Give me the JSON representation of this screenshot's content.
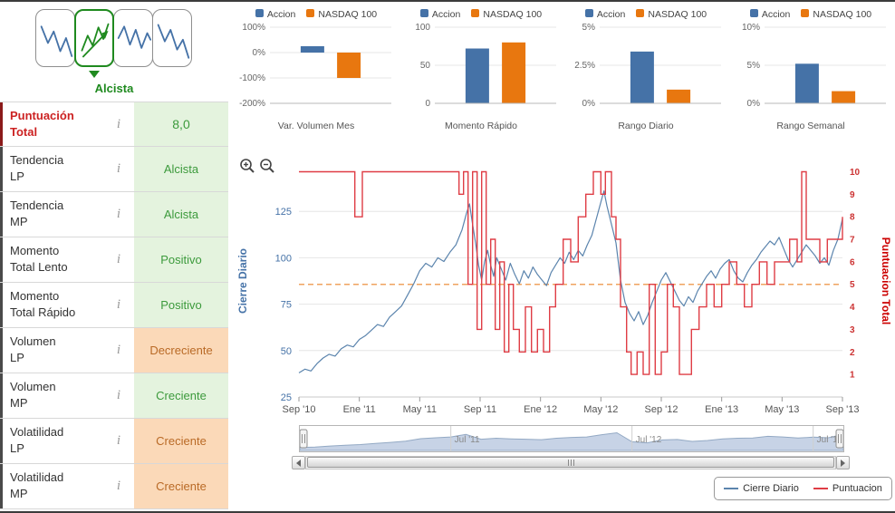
{
  "pattern_selector": {
    "selected_label": "Alcista",
    "patterns": [
      {
        "name": "bajista",
        "selected": false
      },
      {
        "name": "alcista",
        "selected": true
      },
      {
        "name": "lateral",
        "selected": false
      },
      {
        "name": "bajista-volatil",
        "selected": false
      }
    ]
  },
  "indicators": [
    {
      "label": "Puntuación\nTotal",
      "value": "8,0",
      "tone": "green",
      "emphasis": true
    },
    {
      "label": "Tendencia\nLP",
      "value": "Alcista",
      "tone": "green",
      "emphasis": false
    },
    {
      "label": "Tendencia\nMP",
      "value": "Alcista",
      "tone": "green",
      "emphasis": false
    },
    {
      "label": "Momento\nTotal Lento",
      "value": "Positivo",
      "tone": "green",
      "emphasis": false
    },
    {
      "label": "Momento\nTotal Rápido",
      "value": "Positivo",
      "tone": "green",
      "emphasis": false
    },
    {
      "label": "Volumen\nLP",
      "value": "Decreciente",
      "tone": "orange",
      "emphasis": false
    },
    {
      "label": "Volumen\nMP",
      "value": "Creciente",
      "tone": "green",
      "emphasis": false
    },
    {
      "label": "Volatilidad\nLP",
      "value": "Creciente",
      "tone": "orange",
      "emphasis": false
    },
    {
      "label": "Volatilidad\nMP",
      "value": "Creciente",
      "tone": "orange",
      "emphasis": false
    }
  ],
  "icons": {
    "info": "info-italic-i",
    "zoom_in": "zoom-in-magnifier",
    "zoom_out": "zoom-out-magnifier",
    "scroll_left": "arrow-left",
    "scroll_right": "arrow-right",
    "info_char": "i"
  },
  "legend": {
    "items": [
      {
        "label": "Cierre Diario",
        "color": "#5b84ad"
      },
      {
        "label": "Puntuacion",
        "color": "#df3d45"
      }
    ]
  },
  "colors": {
    "accion_bar": "#4572a7",
    "nasdaq_bar": "#e8770f",
    "price_line": "#5b84ad",
    "score_line": "#df3d45",
    "threshold_line": "#efa35f",
    "axis_left_text": "#4572a7",
    "axis_right_text": "#cc3333",
    "xaxis_text": "#555555",
    "green_text": "#3c9a3c",
    "green_bg": "#e4f3de",
    "orange_text": "#b96a26",
    "orange_bg": "#fbd9b8",
    "emphasis_text": "#cc2222",
    "pattern_green": "#1f8a1f",
    "pattern_blue": "#4572a7",
    "navigator_fill": "#c7d3e6",
    "navigator_line": "#93a9c4"
  },
  "chart_data": [
    {
      "type": "bar",
      "title": "Var. Volumen Mes",
      "legend": [
        "Accion",
        "NASDAQ 100"
      ],
      "categories": [
        "Accion",
        "NASDAQ 100"
      ],
      "values": [
        25,
        -100
      ],
      "ylim": [
        -200,
        100
      ],
      "yticks": [
        100,
        0,
        -100,
        -200
      ],
      "ytick_labels": [
        "100%",
        "0%",
        "-100%",
        "-200%"
      ]
    },
    {
      "type": "bar",
      "title": "Momento Rápido",
      "legend": [
        "Accion",
        "NASDAQ 100"
      ],
      "categories": [
        "Accion",
        "NASDAQ 100"
      ],
      "values": [
        72,
        80
      ],
      "ylim": [
        0,
        100
      ],
      "yticks": [
        100,
        50,
        0
      ],
      "ytick_labels": [
        "100",
        "50",
        "0"
      ]
    },
    {
      "type": "bar",
      "title": "Rango Diario",
      "legend": [
        "Accion",
        "NASDAQ 100"
      ],
      "categories": [
        "Accion",
        "NASDAQ 100"
      ],
      "values": [
        3.4,
        0.9
      ],
      "ylim": [
        0,
        5
      ],
      "yticks": [
        5,
        2.5,
        0
      ],
      "ytick_labels": [
        "5%",
        "2.5%",
        "0%"
      ]
    },
    {
      "type": "bar",
      "title": "Rango Semanal",
      "legend": [
        "Accion",
        "NASDAQ 100"
      ],
      "categories": [
        "Accion",
        "NASDAQ 100"
      ],
      "values": [
        5.2,
        1.6
      ],
      "ylim": [
        0,
        10
      ],
      "yticks": [
        10,
        5,
        0
      ],
      "ytick_labels": [
        "10%",
        "5%",
        "0%"
      ]
    },
    {
      "type": "line",
      "title": "",
      "x_unit": "months_since_sep_2010",
      "xticks": [
        0,
        4,
        8,
        12,
        16,
        20,
        24,
        28,
        32,
        36
      ],
      "xtick_labels": [
        "Sep '10",
        "Ene '11",
        "May '11",
        "Sep '11",
        "Ene '12",
        "May '12",
        "Sep '12",
        "Ene '13",
        "May '13",
        "Sep '13"
      ],
      "left_axis": {
        "title": "Cierre Diario",
        "ticks": [
          25,
          50,
          75,
          100,
          125
        ],
        "range": [
          25,
          150
        ]
      },
      "right_axis": {
        "title": "Puntuacion Total",
        "ticks": [
          1,
          2,
          3,
          4,
          5,
          6,
          7,
          8,
          9,
          10
        ],
        "range": [
          0,
          10.3
        ]
      },
      "threshold": {
        "axis": "right",
        "value": 5,
        "style": "dashed"
      },
      "series": [
        {
          "name": "Cierre Diario",
          "axis": "left",
          "step": false,
          "points": [
            [
              0,
              38
            ],
            [
              0.4,
              40
            ],
            [
              0.8,
              39
            ],
            [
              1.2,
              43
            ],
            [
              1.6,
              46
            ],
            [
              2,
              48
            ],
            [
              2.4,
              47
            ],
            [
              2.8,
              51
            ],
            [
              3.2,
              53
            ],
            [
              3.6,
              52
            ],
            [
              4,
              56
            ],
            [
              4.4,
              58
            ],
            [
              4.8,
              61
            ],
            [
              5.2,
              64
            ],
            [
              5.6,
              63
            ],
            [
              6,
              68
            ],
            [
              6.4,
              71
            ],
            [
              6.8,
              74
            ],
            [
              7.2,
              80
            ],
            [
              7.6,
              86
            ],
            [
              8,
              93
            ],
            [
              8.4,
              97
            ],
            [
              8.8,
              95
            ],
            [
              9.2,
              100
            ],
            [
              9.6,
              98
            ],
            [
              10,
              103
            ],
            [
              10.4,
              107
            ],
            [
              10.8,
              115
            ],
            [
              11.1,
              124
            ],
            [
              11.3,
              129
            ],
            [
              11.5,
              118
            ],
            [
              11.7,
              108
            ],
            [
              11.9,
              96
            ],
            [
              12.1,
              88
            ],
            [
              12.3,
              98
            ],
            [
              12.5,
              104
            ],
            [
              12.7,
              96
            ],
            [
              12.9,
              90
            ],
            [
              13.1,
              100
            ],
            [
              13.4,
              94
            ],
            [
              13.7,
              88
            ],
            [
              14,
              97
            ],
            [
              14.3,
              91
            ],
            [
              14.6,
              86
            ],
            [
              14.9,
              93
            ],
            [
              15.2,
              89
            ],
            [
              15.5,
              95
            ],
            [
              15.8,
              91
            ],
            [
              16.1,
              88
            ],
            [
              16.4,
              85
            ],
            [
              16.7,
              92
            ],
            [
              17,
              96
            ],
            [
              17.3,
              100
            ],
            [
              17.6,
              97
            ],
            [
              17.9,
              103
            ],
            [
              18.2,
              99
            ],
            [
              18.5,
              104
            ],
            [
              18.8,
              101
            ],
            [
              19.1,
              107
            ],
            [
              19.4,
              112
            ],
            [
              19.7,
              121
            ],
            [
              20,
              130
            ],
            [
              20.2,
              136
            ],
            [
              20.4,
              128
            ],
            [
              20.7,
              118
            ],
            [
              21,
              108
            ],
            [
              21.3,
              88
            ],
            [
              21.6,
              76
            ],
            [
              21.9,
              70
            ],
            [
              22.2,
              66
            ],
            [
              22.5,
              71
            ],
            [
              22.8,
              64
            ],
            [
              23.1,
              69
            ],
            [
              23.4,
              76
            ],
            [
              23.7,
              82
            ],
            [
              24,
              88
            ],
            [
              24.3,
              92
            ],
            [
              24.6,
              87
            ],
            [
              24.9,
              82
            ],
            [
              25.2,
              77
            ],
            [
              25.5,
              74
            ],
            [
              25.8,
              79
            ],
            [
              26.1,
              76
            ],
            [
              26.4,
              82
            ],
            [
              26.7,
              86
            ],
            [
              27,
              90
            ],
            [
              27.3,
              93
            ],
            [
              27.6,
              89
            ],
            [
              27.9,
              94
            ],
            [
              28.2,
              97
            ],
            [
              28.5,
              99
            ],
            [
              28.8,
              93
            ],
            [
              29.1,
              89
            ],
            [
              29.4,
              87
            ],
            [
              29.7,
              92
            ],
            [
              30,
              96
            ],
            [
              30.3,
              99
            ],
            [
              30.6,
              103
            ],
            [
              30.9,
              106
            ],
            [
              31.2,
              109
            ],
            [
              31.5,
              107
            ],
            [
              31.8,
              111
            ],
            [
              32.1,
              105
            ],
            [
              32.4,
              99
            ],
            [
              32.7,
              95
            ],
            [
              33,
              99
            ],
            [
              33.3,
              103
            ],
            [
              33.6,
              107
            ],
            [
              33.9,
              104
            ],
            [
              34.2,
              101
            ],
            [
              34.5,
              97
            ],
            [
              34.8,
              100
            ],
            [
              35.1,
              96
            ],
            [
              35.4,
              104
            ],
            [
              35.7,
              110
            ],
            [
              36,
              121
            ]
          ]
        },
        {
          "name": "Puntuacion",
          "axis": "right",
          "step": true,
          "points": [
            [
              0,
              10
            ],
            [
              3.7,
              8
            ],
            [
              4.2,
              10
            ],
            [
              10.6,
              9
            ],
            [
              10.9,
              10
            ],
            [
              11.2,
              5
            ],
            [
              11.5,
              10
            ],
            [
              11.8,
              3
            ],
            [
              12.1,
              10
            ],
            [
              12.4,
              5
            ],
            [
              12.7,
              7
            ],
            [
              13,
              3
            ],
            [
              13.3,
              6
            ],
            [
              13.6,
              2
            ],
            [
              13.9,
              5
            ],
            [
              14.2,
              3
            ],
            [
              14.6,
              2
            ],
            [
              15,
              4
            ],
            [
              15.4,
              2
            ],
            [
              15.8,
              3
            ],
            [
              16.2,
              2
            ],
            [
              16.6,
              4
            ],
            [
              17,
              5
            ],
            [
              17.5,
              7
            ],
            [
              18,
              6
            ],
            [
              18.5,
              8
            ],
            [
              19,
              9
            ],
            [
              19.5,
              10
            ],
            [
              20,
              9
            ],
            [
              20.3,
              10
            ],
            [
              20.7,
              8
            ],
            [
              21,
              7
            ],
            [
              21.3,
              4
            ],
            [
              21.7,
              2
            ],
            [
              22,
              1
            ],
            [
              22.4,
              2
            ],
            [
              22.8,
              1
            ],
            [
              23.2,
              5
            ],
            [
              23.6,
              1
            ],
            [
              24,
              2
            ],
            [
              24.4,
              5
            ],
            [
              24.8,
              4
            ],
            [
              25.2,
              1
            ],
            [
              26,
              3
            ],
            [
              26.5,
              4
            ],
            [
              27,
              5
            ],
            [
              27.5,
              4
            ],
            [
              28,
              5
            ],
            [
              28.5,
              6
            ],
            [
              29,
              5
            ],
            [
              29.5,
              4
            ],
            [
              30,
              5
            ],
            [
              30.5,
              6
            ],
            [
              31,
              5
            ],
            [
              31.5,
              6
            ],
            [
              32,
              6
            ],
            [
              32.5,
              7
            ],
            [
              33,
              6
            ],
            [
              33.3,
              10
            ],
            [
              33.6,
              7
            ],
            [
              34,
              7
            ],
            [
              34.5,
              6
            ],
            [
              35,
              7
            ],
            [
              36,
              8
            ]
          ]
        }
      ],
      "navigator": {
        "series": [
          38,
          41,
          47,
          52,
          56,
          63,
          70,
          78,
          93,
          99,
          104,
          120,
          90,
          96,
          92,
          90,
          87,
          96,
          101,
          104,
          118,
          130,
          74,
          67,
          85,
          88,
          76,
          82,
          92,
          96,
          97,
          108,
          104,
          97,
          103,
          99,
          121
        ],
        "labels": [
          {
            "x": 10,
            "label": "Jul '11"
          },
          {
            "x": 22,
            "label": "Jul '12"
          },
          {
            "x": 34,
            "label": "Jul '13"
          }
        ]
      }
    }
  ]
}
